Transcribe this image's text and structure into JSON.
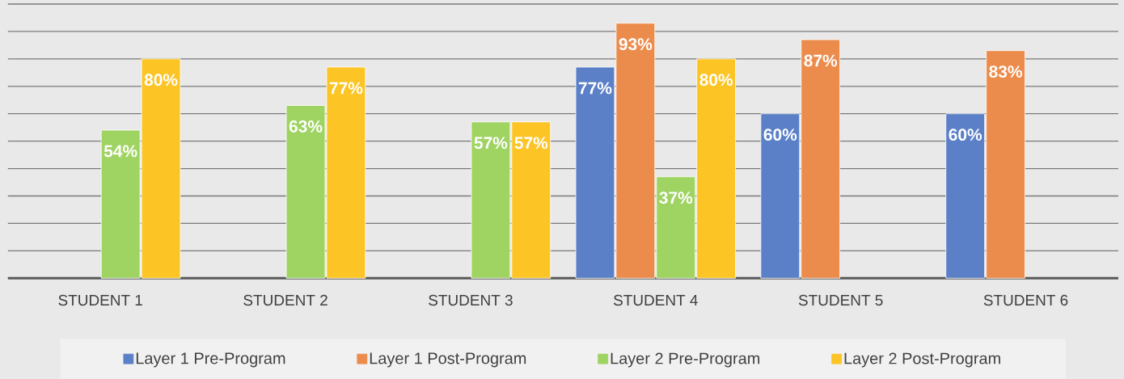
{
  "chart_data": {
    "type": "bar",
    "categories": [
      "STUDENT 1",
      "STUDENT 2",
      "STUDENT 3",
      "STUDENT 4",
      "STUDENT 5",
      "STUDENT 6"
    ],
    "series": [
      {
        "name": "Layer 1 Pre-Program",
        "color": "#5b80c8",
        "values": [
          null,
          null,
          null,
          77,
          60,
          60
        ],
        "value_labels": [
          null,
          null,
          null,
          "77%",
          "60%",
          "60%"
        ]
      },
      {
        "name": "Layer 1 Post-Program",
        "color": "#ec8c4c",
        "values": [
          null,
          null,
          null,
          93,
          87,
          83
        ],
        "value_labels": [
          null,
          null,
          null,
          "93%",
          "87%",
          "83%"
        ]
      },
      {
        "name": "Layer 2 Pre-Program",
        "color": "#9fd362",
        "values": [
          54,
          63,
          57,
          37,
          null,
          null
        ],
        "value_labels": [
          "54%",
          "63%",
          "57%",
          "37%",
          null,
          null
        ]
      },
      {
        "name": "Layer 2 Post-Program",
        "color": "#fcc425",
        "values": [
          80,
          77,
          57,
          80,
          null,
          null
        ],
        "value_labels": [
          "80%",
          "77%",
          "57%",
          "80%",
          null,
          null
        ]
      }
    ],
    "ylim": [
      0,
      100
    ],
    "yticks": [
      0,
      10,
      20,
      30,
      40,
      50,
      60,
      70,
      80,
      90,
      100
    ],
    "grid": "y",
    "legend": "bottom",
    "tick_labels": "x"
  }
}
